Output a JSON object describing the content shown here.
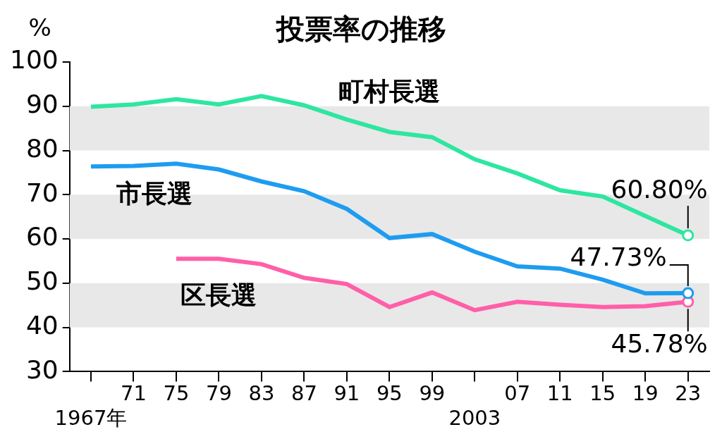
{
  "chart_data": {
    "type": "line",
    "title": "投票率の推移",
    "y_label": "%",
    "categories": [
      "1967年",
      "71",
      "75",
      "79",
      "83",
      "87",
      "91",
      "95",
      "99",
      "2003",
      "07",
      "11",
      "15",
      "19",
      "23"
    ],
    "series": [
      {
        "name": "町村長選",
        "color": "#2ee6a0",
        "values": [
          89.9,
          90.4,
          91.6,
          90.4,
          92.3,
          90.2,
          87.0,
          84.2,
          83.0,
          78.0,
          74.8,
          71.0,
          69.6,
          65.2,
          60.8
        ],
        "value_labels": [
          null,
          null,
          null,
          null,
          null,
          null,
          null,
          null,
          null,
          null,
          null,
          null,
          null,
          null,
          "60.80%"
        ]
      },
      {
        "name": "市長選",
        "color": "#1e9cf0",
        "values": [
          76.4,
          76.5,
          77.0,
          75.7,
          73.0,
          70.8,
          66.8,
          60.2,
          61.1,
          57.1,
          53.8,
          53.3,
          50.8,
          47.7,
          47.73
        ],
        "value_labels": [
          null,
          null,
          null,
          null,
          null,
          null,
          null,
          null,
          null,
          null,
          null,
          null,
          null,
          null,
          "47.73%"
        ]
      },
      {
        "name": "区長選",
        "color": "#ff5fa8",
        "values": [
          null,
          null,
          55.5,
          55.5,
          54.3,
          51.2,
          49.8,
          44.6,
          47.9,
          43.9,
          45.8,
          45.1,
          44.6,
          44.8,
          45.78
        ],
        "value_labels": [
          null,
          null,
          null,
          null,
          null,
          null,
          null,
          null,
          null,
          null,
          null,
          null,
          null,
          null,
          "45.78%"
        ]
      }
    ],
    "ylim": [
      30,
      100
    ],
    "yticks": [
      30,
      40,
      50,
      60,
      70,
      80,
      90,
      100
    ],
    "grid": true
  }
}
